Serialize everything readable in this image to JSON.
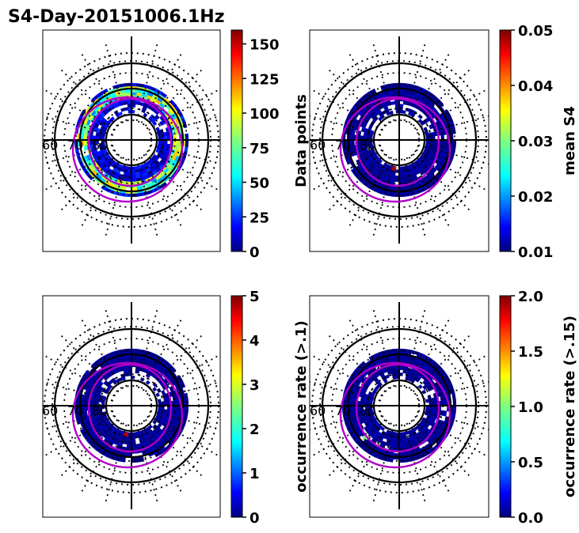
{
  "title": "S4-Day-20151006.1Hz",
  "chart_data": [
    {
      "type": "heatmap",
      "projection": "polar",
      "colormap": "jet",
      "colorbar_label": "Data points",
      "vmin": 0,
      "vmax": 160,
      "colorbar_ticks": [
        "0",
        "25",
        "50",
        "75",
        "100",
        "125",
        "150"
      ],
      "lat_labels": [
        "60",
        "70",
        "80"
      ],
      "data_range": "mostly 0-30, with peaks around 60-100 on the ring near 70-75 degrees"
    },
    {
      "type": "heatmap",
      "projection": "polar",
      "colormap": "jet",
      "colorbar_label": "mean S4",
      "vmin": 0.01,
      "vmax": 0.05,
      "colorbar_ticks": [
        "0.01",
        "0.02",
        "0.03",
        "0.04",
        "0.05"
      ],
      "lat_labels": [
        "60",
        "70",
        "80"
      ],
      "data_range": "nearly all near 0.01, one cell near 0.05"
    },
    {
      "type": "heatmap",
      "projection": "polar",
      "colormap": "jet",
      "colorbar_label": "occurrence rate (>.1)",
      "vmin": 0,
      "vmax": 5,
      "colorbar_ticks": [
        "0",
        "1",
        "2",
        "3",
        "4",
        "5"
      ],
      "lat_labels": [
        "60",
        "70",
        "80"
      ],
      "data_range": "nearly all 0, one cell near 5"
    },
    {
      "type": "heatmap",
      "projection": "polar",
      "colormap": "jet",
      "colorbar_label": "occurrence rate (>.15)",
      "vmin": 0.0,
      "vmax": 2.0,
      "colorbar_ticks": [
        "0.0",
        "0.5",
        "1.0",
        "1.5",
        "2.0"
      ],
      "lat_labels": [
        "60",
        "70",
        "80"
      ],
      "data_range": "nearly all 0.0, one cell near 1.0"
    }
  ]
}
